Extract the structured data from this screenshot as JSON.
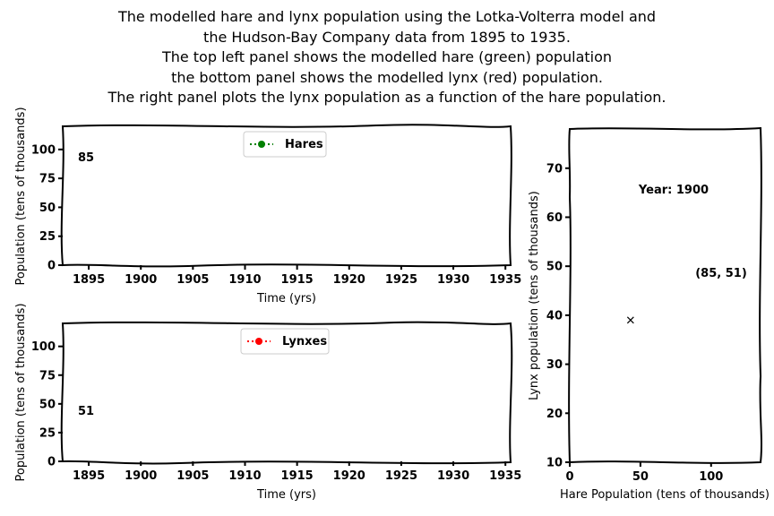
{
  "title_lines": [
    "The modelled hare and lynx population using the Lotka-Volterra model and",
    "the Hudson-Bay Company data from 1895 to 1935.",
    "The top left panel shows the modelled hare (green) population",
    "the bottom panel shows the modelled lynx (red) population.",
    "The right panel plots the lynx population as a function of the hare population."
  ],
  "chart_data": [
    {
      "type": "line",
      "panel": "top-left",
      "xlabel": "Time (yrs)",
      "ylabel": "Population (tens of thousands)",
      "xlim": [
        1892.5,
        1935.5
      ],
      "ylim": [
        0,
        120
      ],
      "xticks": [
        1895,
        1900,
        1905,
        1910,
        1915,
        1920,
        1925,
        1930,
        1935
      ],
      "yticks": [
        0,
        25,
        50,
        75,
        100
      ],
      "series": [
        {
          "name": "Hares",
          "color": "#008000",
          "x": [],
          "y": []
        }
      ],
      "legend_position": "top-center",
      "annotation": "85"
    },
    {
      "type": "line",
      "panel": "bottom-left",
      "xlabel": "Time (yrs)",
      "ylabel": "Population (tens of thousands)",
      "xlim": [
        1892.5,
        1935.5
      ],
      "ylim": [
        0,
        120
      ],
      "xticks": [
        1895,
        1900,
        1905,
        1910,
        1915,
        1920,
        1925,
        1930,
        1935
      ],
      "yticks": [
        0,
        25,
        50,
        75,
        100
      ],
      "series": [
        {
          "name": "Lynxes",
          "color": "#ff0000",
          "x": [],
          "y": []
        }
      ],
      "legend_position": "top-center",
      "annotation": "51"
    },
    {
      "type": "scatter",
      "panel": "right",
      "xlabel": "Hare Population (tens of thousands)",
      "ylabel": "Lynx population (tens of thousands)",
      "xlim": [
        0,
        135
      ],
      "ylim": [
        10,
        78
      ],
      "xticks": [
        0,
        50,
        100
      ],
      "yticks": [
        10,
        20,
        30,
        40,
        50,
        60,
        70
      ],
      "points": [
        {
          "x": 43,
          "y": 39,
          "marker": "x"
        }
      ],
      "year_label": "Year: 1900",
      "coord_label": "(85, 51)"
    }
  ]
}
